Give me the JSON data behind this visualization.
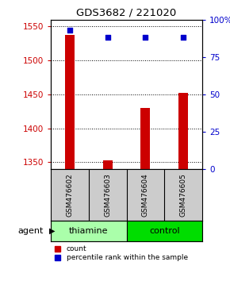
{
  "title": "GDS3682 / 221020",
  "samples": [
    "GSM476602",
    "GSM476603",
    "GSM476604",
    "GSM476605"
  ],
  "counts": [
    1537,
    1353,
    1430,
    1452
  ],
  "percentiles": [
    93,
    88,
    88,
    88
  ],
  "ylim_left": [
    1340,
    1560
  ],
  "ylim_right": [
    0,
    100
  ],
  "yticks_left": [
    1350,
    1400,
    1450,
    1500,
    1550
  ],
  "yticks_right": [
    0,
    25,
    50,
    75,
    100
  ],
  "ytick_labels_right": [
    "0",
    "25",
    "50",
    "75",
    "100%"
  ],
  "bar_color": "#cc0000",
  "dot_color": "#0000cc",
  "groups": [
    {
      "label": "thiamine",
      "indices": [
        0,
        1
      ],
      "color": "#aaffaa"
    },
    {
      "label": "control",
      "indices": [
        2,
        3
      ],
      "color": "#00dd00"
    }
  ],
  "sample_label_bg": "#cccccc",
  "background_color": "#ffffff",
  "plot_bg": "#ffffff",
  "bar_width": 0.25,
  "agent_label": "agent"
}
